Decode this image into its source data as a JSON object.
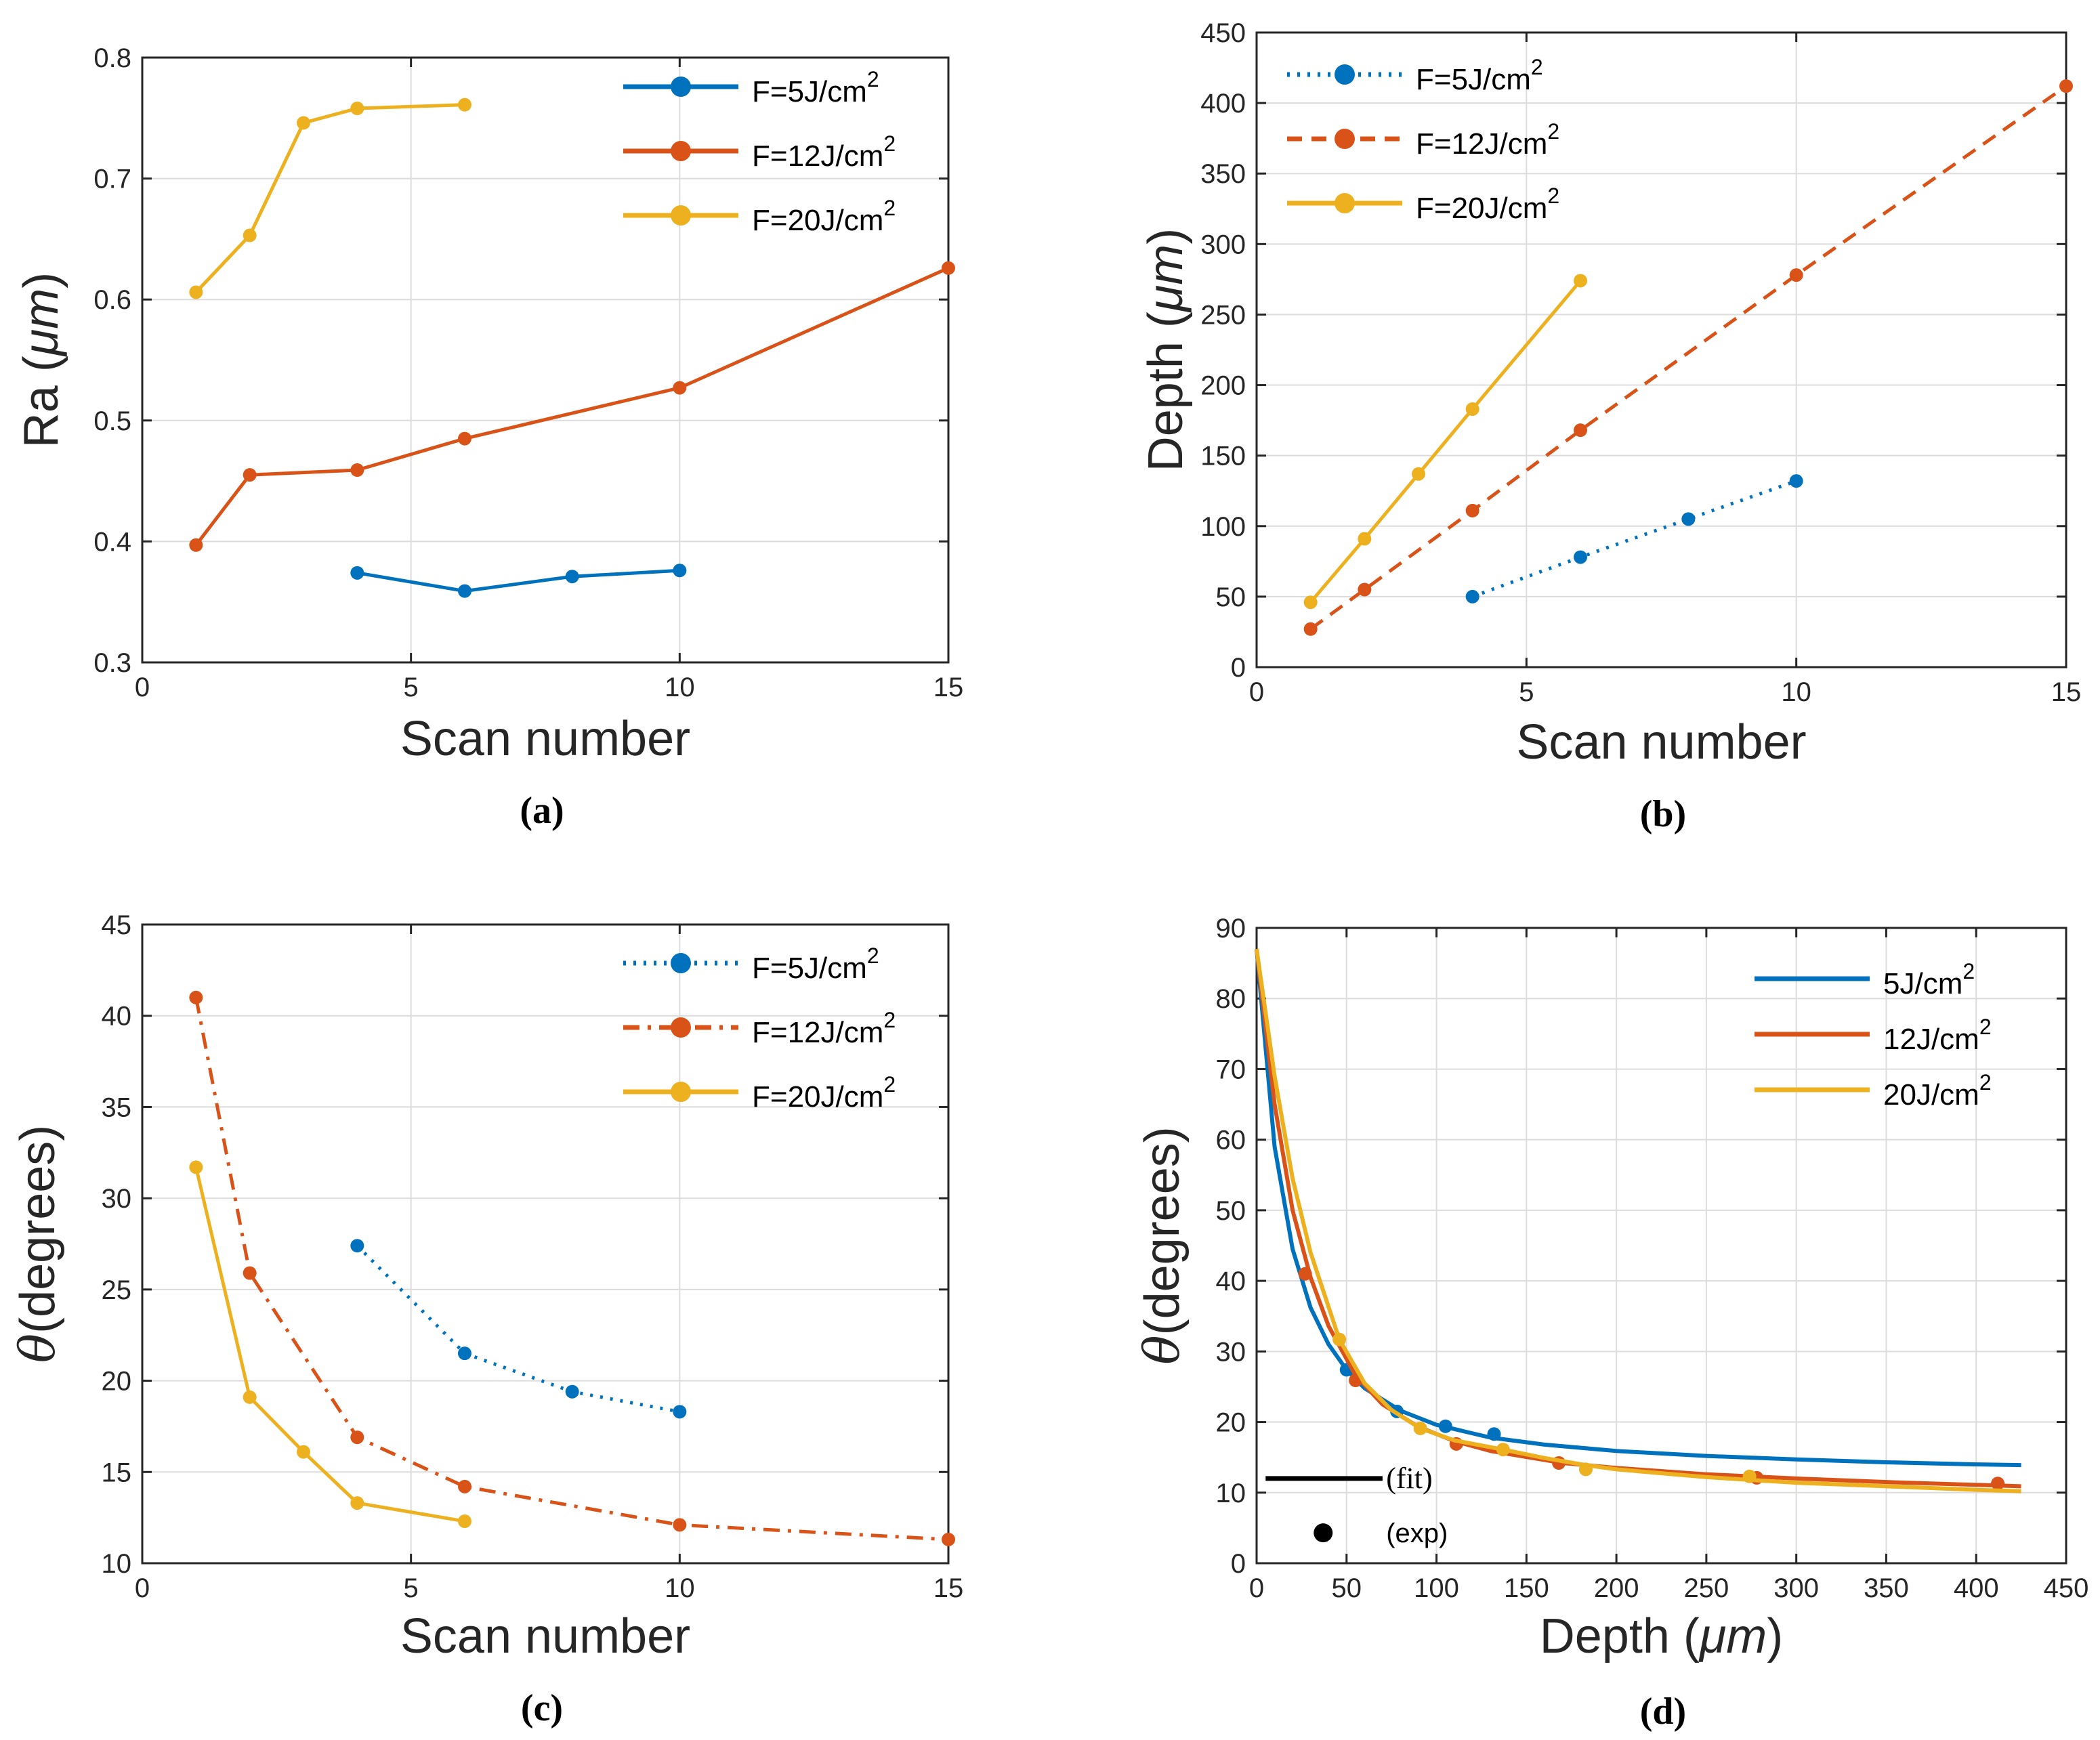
{
  "colors": {
    "blue": "#0072BD",
    "red": "#D95319",
    "yellow": "#EDB120",
    "grid": "#DCDCDC",
    "axis": "#262626"
  },
  "chart_data": [
    {
      "id": "a",
      "type": "line",
      "panel_label": "(a)",
      "xlabel": "Scan number",
      "ylabel": "Ra (μm)",
      "ylabel_main": "Ra ",
      "ylabel_unit": "μm",
      "xlim": [
        0,
        15
      ],
      "ylim": [
        0.3,
        0.8
      ],
      "xticks": [
        0,
        5,
        10,
        15
      ],
      "xtick_labels": [
        "0",
        "5",
        "10",
        "15"
      ],
      "yticks": [
        0.3,
        0.4,
        0.5,
        0.6,
        0.7,
        0.8
      ],
      "ytick_labels": [
        "0.3",
        "0.4",
        "0.5",
        "0.6",
        "0.7",
        "0.8"
      ],
      "grid": true,
      "legend_position": "top-right",
      "series": [
        {
          "name": "F=5J/cm",
          "sup": "2",
          "color": "#0072BD",
          "style": "solid",
          "x": [
            4,
            6,
            8,
            10
          ],
          "y": [
            0.374,
            0.359,
            0.371,
            0.376
          ]
        },
        {
          "name": "F=12J/cm",
          "sup": "2",
          "color": "#D95319",
          "style": "solid",
          "x": [
            1,
            2,
            4,
            6,
            10,
            15
          ],
          "y": [
            0.397,
            0.455,
            0.459,
            0.485,
            0.527,
            0.626
          ]
        },
        {
          "name": "F=20J/cm",
          "sup": "2",
          "color": "#EDB120",
          "style": "solid",
          "x": [
            1,
            2,
            3,
            4,
            6
          ],
          "y": [
            0.606,
            0.653,
            0.746,
            0.758,
            0.761
          ]
        }
      ]
    },
    {
      "id": "b",
      "type": "line",
      "panel_label": "(b)",
      "xlabel": "Scan number",
      "ylabel": "Depth (μm)",
      "ylabel_main": "Depth ",
      "ylabel_unit": "μm",
      "xlim": [
        0,
        15
      ],
      "ylim": [
        0,
        450
      ],
      "xticks": [
        0,
        5,
        10,
        15
      ],
      "xtick_labels": [
        "0",
        "5",
        "10",
        "15"
      ],
      "yticks": [
        0,
        50,
        100,
        150,
        200,
        250,
        300,
        350,
        400,
        450
      ],
      "ytick_labels": [
        "0",
        "50",
        "100",
        "150",
        "200",
        "250",
        "300",
        "350",
        "400",
        "450"
      ],
      "grid": true,
      "legend_position": "top-left",
      "series": [
        {
          "name": "F=5J/cm",
          "sup": "2",
          "color": "#0072BD",
          "style": "dotted",
          "x": [
            4,
            6,
            8,
            10
          ],
          "y": [
            50,
            78,
            105,
            132
          ]
        },
        {
          "name": "F=12J/cm",
          "sup": "2",
          "color": "#D95319",
          "style": "dashed",
          "x": [
            1,
            2,
            4,
            6,
            10,
            15
          ],
          "y": [
            27,
            55,
            111,
            168,
            278,
            412
          ]
        },
        {
          "name": "F=20J/cm",
          "sup": "2",
          "color": "#EDB120",
          "style": "solid",
          "x": [
            1,
            2,
            3,
            4,
            6
          ],
          "y": [
            46,
            91,
            137,
            183,
            274
          ]
        }
      ]
    },
    {
      "id": "c",
      "type": "line",
      "panel_label": "(c)",
      "xlabel": "Scan number",
      "ylabel": "θ(degrees)",
      "ylabel_main": "θ",
      "ylabel_unit": "(degrees)",
      "xlim": [
        0,
        15
      ],
      "ylim": [
        10,
        45
      ],
      "xticks": [
        0,
        5,
        10,
        15
      ],
      "xtick_labels": [
        "0",
        "5",
        "10",
        "15"
      ],
      "yticks": [
        10,
        15,
        20,
        25,
        30,
        35,
        40,
        45
      ],
      "ytick_labels": [
        "10",
        "15",
        "20",
        "25",
        "30",
        "35",
        "40",
        "45"
      ],
      "grid": true,
      "legend_position": "top-right",
      "series": [
        {
          "name": "F=5J/cm",
          "sup": "2",
          "color": "#0072BD",
          "style": "dotted",
          "x": [
            4,
            6,
            8,
            10
          ],
          "y": [
            27.4,
            21.5,
            19.4,
            18.3
          ]
        },
        {
          "name": "F=12J/cm",
          "sup": "2",
          "color": "#D95319",
          "style": "dashdot",
          "x": [
            1,
            2,
            4,
            6,
            10,
            15
          ],
          "y": [
            41.0,
            25.9,
            16.9,
            14.2,
            12.1,
            11.3
          ]
        },
        {
          "name": "F=20J/cm",
          "sup": "2",
          "color": "#EDB120",
          "style": "solid",
          "x": [
            1,
            2,
            3,
            4,
            6
          ],
          "y": [
            31.7,
            19.1,
            16.1,
            13.3,
            12.3
          ]
        }
      ]
    },
    {
      "id": "d",
      "type": "line",
      "panel_label": "(d)",
      "xlabel": "Depth (μm)",
      "xlabel_main": "Depth ",
      "xlabel_unit": "μm",
      "ylabel": "θ(degrees)",
      "ylabel_main": "θ",
      "ylabel_unit": "(degrees)",
      "xlim": [
        0,
        450
      ],
      "ylim": [
        0,
        90
      ],
      "xticks": [
        0,
        50,
        100,
        150,
        200,
        250,
        300,
        350,
        400,
        450
      ],
      "xtick_labels": [
        "0",
        "50",
        "100",
        "150",
        "200",
        "250",
        "300",
        "350",
        "400",
        "450"
      ],
      "yticks": [
        0,
        10,
        20,
        30,
        40,
        50,
        60,
        70,
        80,
        90
      ],
      "ytick_labels": [
        "0",
        "10",
        "20",
        "30",
        "40",
        "50",
        "60",
        "70",
        "80",
        "90"
      ],
      "grid": true,
      "legend_position": "top-right",
      "annotations": {
        "fit_label": "(fit)",
        "exp_label": "(exp)"
      },
      "series": [
        {
          "name": "5J/cm",
          "sup": "2",
          "color": "#0072BD",
          "fit_x": [
            0,
            10,
            20,
            30,
            40,
            50,
            60,
            80,
            100,
            130,
            160,
            200,
            250,
            300,
            350,
            400,
            425
          ],
          "fit_y": [
            87,
            59,
            44.5,
            36.2,
            31,
            27.4,
            24.8,
            21.6,
            19.6,
            17.8,
            16.8,
            15.9,
            15.2,
            14.7,
            14.3,
            14.0,
            13.9
          ],
          "exp_x": [
            50,
            78,
            105,
            132
          ],
          "exp_y": [
            27.4,
            21.5,
            19.4,
            18.3
          ]
        },
        {
          "name": "12J/cm",
          "sup": "2",
          "color": "#D95319",
          "fit_x": [
            0,
            10,
            20,
            30,
            40,
            55,
            70,
            90,
            110,
            130,
            170,
            200,
            250,
            300,
            350,
            400,
            425
          ],
          "fit_y": [
            87,
            65,
            50,
            40.5,
            33.6,
            26.6,
            22.5,
            19.3,
            17.3,
            15.9,
            14.2,
            13.5,
            12.6,
            12.0,
            11.5,
            11.1,
            10.9
          ],
          "exp_x": [
            27,
            55,
            111,
            168,
            278,
            412
          ],
          "exp_y": [
            41.0,
            25.9,
            16.9,
            14.2,
            12.1,
            11.3
          ]
        },
        {
          "name": "20J/cm",
          "sup": "2",
          "color": "#EDB120",
          "fit_x": [
            0,
            10,
            20,
            30,
            46,
            60,
            75,
            91,
            110,
            137,
            160,
            183,
            200,
            250,
            274,
            300,
            350,
            400,
            425
          ],
          "fit_y": [
            87,
            69,
            54.5,
            44,
            31.7,
            25.5,
            21.7,
            19.1,
            17.4,
            16.1,
            14.9,
            13.9,
            13.3,
            12.2,
            11.8,
            11.4,
            10.9,
            10.4,
            10.2
          ],
          "exp_x": [
            46,
            91,
            137,
            183,
            274
          ],
          "exp_y": [
            31.7,
            19.1,
            16.1,
            13.3,
            12.3
          ]
        }
      ]
    }
  ]
}
